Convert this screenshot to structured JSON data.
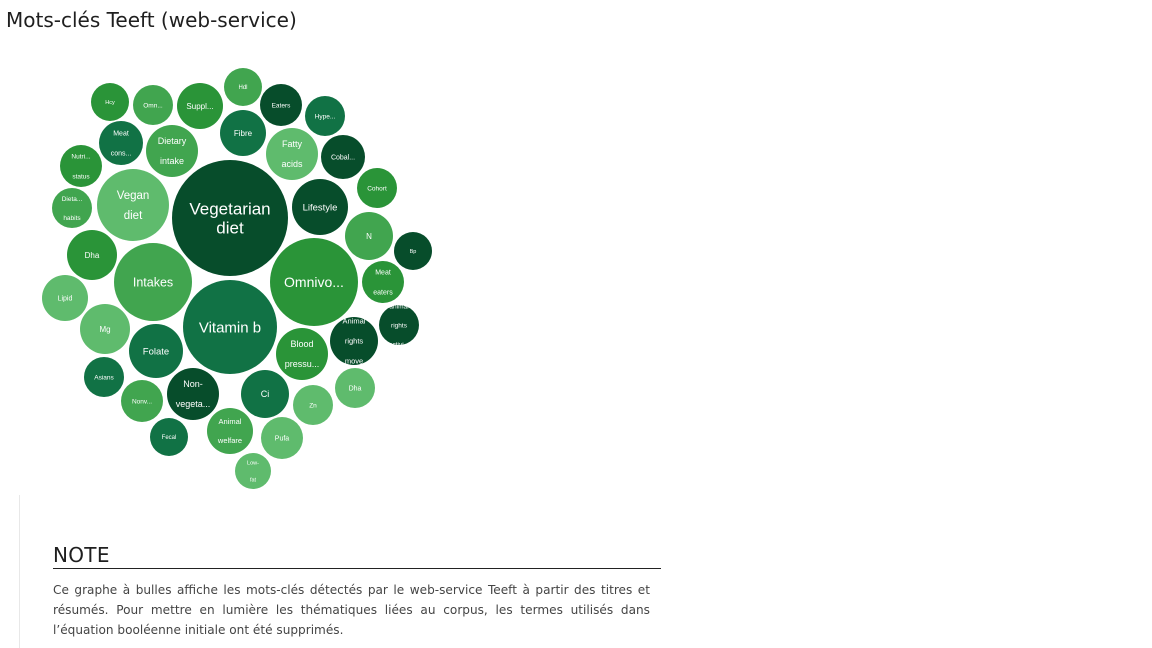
{
  "header": {
    "title": "Mots-clés Teeft (web-service)"
  },
  "note": {
    "heading": "NOTE",
    "text": "Ce graphe à bulles affiche les mots-clés détectés par le web-service Teeft à partir des titres et résumés. Pour mettre en lumière les thématiques liées au corpus, les termes utilisés dans l’équation booléenne initiale ont été supprimés."
  },
  "colors": {
    "c1": "#074d2b",
    "c2": "#117245",
    "c3": "#2a9438",
    "c4": "#41a54f",
    "c5": "#5fbb6d"
  },
  "chart_data": {
    "type": "bubble",
    "title": "",
    "bubbles": [
      {
        "label": "Vegetarian diet",
        "lines": [
          "Vegetarian",
          "diet"
        ],
        "color": "#074d2b"
      },
      {
        "label": "Vitamin b",
        "lines": [
          "Vitamin b"
        ],
        "color": "#117245"
      },
      {
        "label": "Omnivo...",
        "lines": [
          "Omnivo..."
        ],
        "color": "#2a9438"
      },
      {
        "label": "Intakes",
        "lines": [
          "Intakes"
        ],
        "color": "#41a54f"
      },
      {
        "label": "Vegan diet",
        "lines": [
          "Vegan",
          "diet"
        ],
        "color": "#5fbb6d"
      },
      {
        "label": "Lifestyle",
        "lines": [
          "Lifestyle"
        ],
        "color": "#074d2b"
      },
      {
        "label": "Folate",
        "lines": [
          "Folate"
        ],
        "color": "#117245"
      },
      {
        "label": "Blood pressu...",
        "lines": [
          "Blood",
          "pressu..."
        ],
        "color": "#2a9438"
      },
      {
        "label": "Dietary intake",
        "lines": [
          "Dietary",
          "intake"
        ],
        "color": "#41a54f"
      },
      {
        "label": "Fatty acids",
        "lines": [
          "Fatty",
          "acids"
        ],
        "color": "#5fbb6d"
      },
      {
        "label": "Non-vegeta...",
        "lines": [
          "Non-",
          "vegeta..."
        ],
        "color": "#074d2b"
      },
      {
        "label": "Ci",
        "lines": [
          "Ci"
        ],
        "color": "#117245"
      },
      {
        "label": "Dha",
        "lines": [
          "Dha"
        ],
        "color": "#2a9438"
      },
      {
        "label": "N",
        "lines": [
          "N"
        ],
        "color": "#41a54f"
      },
      {
        "label": "Mg",
        "lines": [
          "Mg"
        ],
        "color": "#5fbb6d"
      },
      {
        "label": "Animal rights move",
        "lines": [
          "Animal",
          "rights",
          "move"
        ],
        "color": "#074d2b"
      },
      {
        "label": "Fibre",
        "lines": [
          "Fibre"
        ],
        "color": "#117245"
      },
      {
        "label": "Suppl...",
        "lines": [
          "Suppl..."
        ],
        "color": "#2a9438"
      },
      {
        "label": "Animal welfare",
        "lines": [
          "Animal",
          "welfare"
        ],
        "color": "#41a54f"
      },
      {
        "label": "Lipid",
        "lines": [
          "Lipid"
        ],
        "color": "#5fbb6d"
      },
      {
        "label": "Cobal...",
        "lines": [
          "Cobal..."
        ],
        "color": "#074d2b"
      },
      {
        "label": "Meat cons...",
        "lines": [
          "Meat",
          "cons..."
        ],
        "color": "#117245"
      },
      {
        "label": "Nutri... status",
        "lines": [
          "Nutri...",
          "status"
        ],
        "color": "#2a9438"
      },
      {
        "label": "Nonv...",
        "lines": [
          "Nonv..."
        ],
        "color": "#41a54f"
      },
      {
        "label": "Pufa",
        "lines": [
          "Pufa"
        ],
        "color": "#5fbb6d"
      },
      {
        "label": "Eaters",
        "lines": [
          "Eaters"
        ],
        "color": "#074d2b"
      },
      {
        "label": "Hype...",
        "lines": [
          "Hype..."
        ],
        "color": "#117245"
      },
      {
        "label": "Cohort",
        "lines": [
          "Cohort"
        ],
        "color": "#2a9438"
      },
      {
        "label": "Meat eaters",
        "lines": [
          "Meat",
          "eaters"
        ],
        "color": "#2a9438"
      },
      {
        "label": "Omn...",
        "lines": [
          "Omn..."
        ],
        "color": "#41a54f"
      },
      {
        "label": "Dha",
        "lines": [
          "Dha"
        ],
        "color": "#5fbb6d"
      },
      {
        "label": "Animal rights activi...",
        "lines": [
          "animal",
          "rights",
          "activi..."
        ],
        "color": "#074d2b"
      },
      {
        "label": "Asians",
        "lines": [
          "Asians"
        ],
        "color": "#117245"
      },
      {
        "label": "Hcy",
        "lines": [
          "Hcy"
        ],
        "color": "#2a9438"
      },
      {
        "label": "Dieta... habits",
        "lines": [
          "Dieta...",
          "habits"
        ],
        "color": "#41a54f"
      },
      {
        "label": "Zn",
        "lines": [
          "Zn"
        ],
        "color": "#5fbb6d"
      },
      {
        "label": "Bp",
        "lines": [
          "Bp"
        ],
        "color": "#074d2b"
      },
      {
        "label": "Fecal",
        "lines": [
          "Fecal"
        ],
        "color": "#117245"
      },
      {
        "label": "Hdl",
        "lines": [
          "Hdl"
        ],
        "color": "#41a54f"
      },
      {
        "label": "Low-fat",
        "lines": [
          "Low-",
          "fat"
        ],
        "color": "#5fbb6d"
      }
    ]
  }
}
